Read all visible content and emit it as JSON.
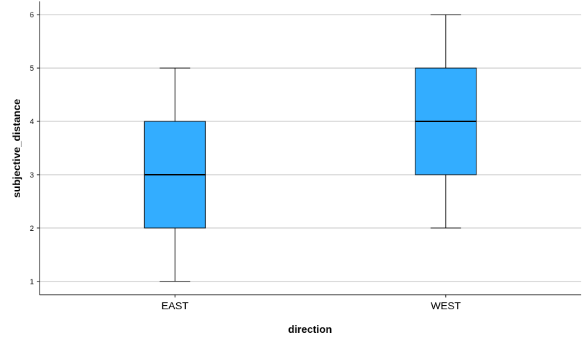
{
  "chart_data": {
    "type": "boxplot",
    "xlabel": "direction",
    "ylabel": "subjective_distance",
    "categories": [
      "EAST",
      "WEST"
    ],
    "boxes": [
      {
        "category": "EAST",
        "whisker_low": 1,
        "q1": 2,
        "median": 3,
        "q3": 4,
        "whisker_high": 5
      },
      {
        "category": "WEST",
        "whisker_low": 2,
        "q1": 3,
        "median": 4,
        "q3": 5,
        "whisker_high": 6
      }
    ],
    "ylim": [
      0.75,
      6.25
    ],
    "yticks": [
      1,
      2,
      3,
      4,
      5,
      6
    ],
    "grid": "horizontal",
    "box_color": "#33adff",
    "line_color": "#000000",
    "grid_color": "#bcbcbc"
  }
}
